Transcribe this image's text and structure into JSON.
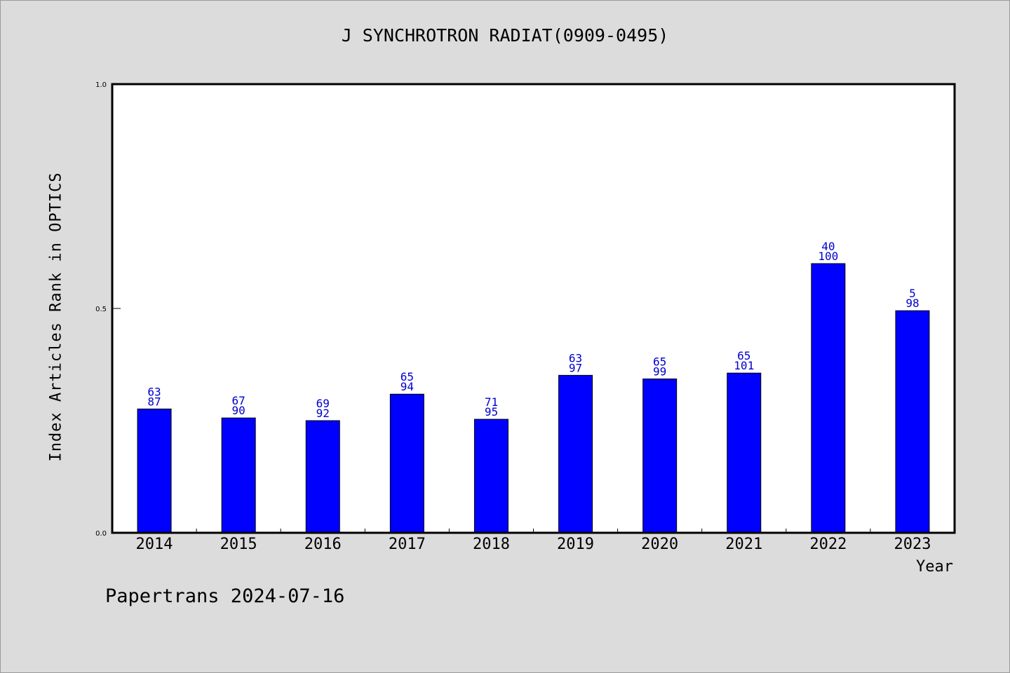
{
  "chart_data": {
    "type": "bar",
    "title": "J SYNCHROTRON RADIAT(0909-0495)",
    "xlabel": "Year",
    "ylabel": "Index Articles Rank in OPTICS",
    "ylim": [
      0.0,
      1.0
    ],
    "yticks": [
      "0.0",
      "0.5",
      "1.0"
    ],
    "categories": [
      "2014",
      "2015",
      "2016",
      "2017",
      "2018",
      "2019",
      "2020",
      "2021",
      "2022",
      "2023"
    ],
    "values": [
      0.276,
      0.256,
      0.25,
      0.309,
      0.253,
      0.351,
      0.343,
      0.356,
      0.6,
      0.495
    ],
    "label_top": [
      "63",
      "67",
      "69",
      "65",
      "71",
      "63",
      "65",
      "65",
      "40",
      "5"
    ],
    "label_bottom": [
      "87",
      "90",
      "92",
      "94",
      "95",
      "97",
      "99",
      "101",
      "100",
      "98"
    ],
    "grid": false,
    "bar_color": "#0000ff",
    "label_color": "#0000cc"
  },
  "footer": "Papertrans 2024-07-16"
}
